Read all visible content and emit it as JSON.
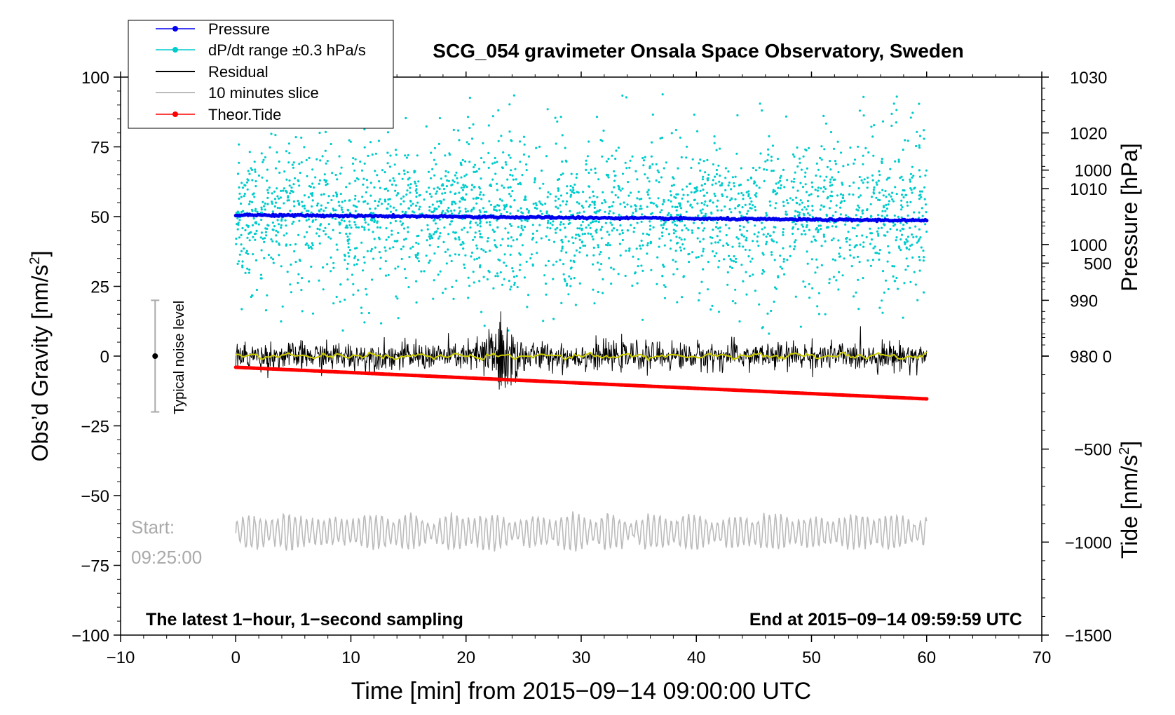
{
  "chart_data": {
    "type": "line",
    "title": "SCG_054 gravimeter Onsala Space Observatory, Sweden",
    "xlabel": "Time [min] from 2015−09−14 09:00:00 UTC",
    "ylabel_left": "Obs’d Gravity [nm/s²]",
    "ylabel_left_main": "Obs’d Gravity [nm/s",
    "ylabel_left_sup": "2",
    "ylabel_left_end": "]",
    "ylabel_right_pressure": "Pressure [hPa]",
    "ylabel_right_tide": "Tide [nm/s²]",
    "ylabel_right_tide_main": "Tide [nm/s",
    "ylabel_right_tide_sup": "2",
    "ylabel_right_tide_end": "]",
    "xlim": [
      -10,
      70
    ],
    "ylim": [
      -100,
      100
    ],
    "pressure_lim": [
      930,
      1030
    ],
    "tide_lim": [
      -1500,
      1500
    ],
    "x_ticks": [
      "−10",
      "0",
      "10",
      "20",
      "30",
      "40",
      "50",
      "60",
      "70"
    ],
    "x_tick_values": [
      -10,
      0,
      10,
      20,
      30,
      40,
      50,
      60,
      70
    ],
    "y_ticks": [
      "100",
      "75",
      "50",
      "25",
      "0",
      "−25",
      "−50",
      "−75",
      "−100"
    ],
    "y_tick_values": [
      100,
      75,
      50,
      25,
      0,
      -25,
      -50,
      -75,
      -100
    ],
    "pressure_ticks": [
      "1030",
      "1020",
      "1010",
      "1000",
      "990",
      "980"
    ],
    "pressure_tick_values": [
      1030,
      1020,
      1010,
      1000,
      990,
      980
    ],
    "tide_ticks": [
      "1000",
      "500",
      "0",
      "−500",
      "−1000",
      "−1500"
    ],
    "tide_tick_values": [
      1000,
      500,
      0,
      -500,
      -1000,
      -1500
    ],
    "legend": {
      "position": "top-left",
      "entries": [
        {
          "label": "Pressure",
          "color": "#0000ee",
          "marker": "dot"
        },
        {
          "label": "dP/dt range ±0.3 hPa/s",
          "color": "#00cccc",
          "marker": "dot"
        },
        {
          "label": "Residual",
          "color": "#000000",
          "marker": "line"
        },
        {
          "label": "10 minutes slice",
          "color": "#bbbbbb",
          "marker": "line"
        },
        {
          "label": "Theor.Tide",
          "color": "#ff0000",
          "marker": "dot"
        }
      ]
    },
    "series": [
      {
        "name": "Pressure",
        "axis": "pressure",
        "x": [
          0,
          60
        ],
        "values": [
          1005.3,
          1004.3
        ],
        "color": "#0000ee"
      },
      {
        "name": "Theor.Tide",
        "axis": "tide",
        "x": [
          0,
          60
        ],
        "values": [
          -60,
          -230
        ],
        "color": "#ff0000"
      },
      {
        "name": "dP/dt range ±0.3 hPa/s",
        "axis": "gravity",
        "center": 50,
        "spread": 13,
        "color": "#00cccc"
      },
      {
        "name": "Residual",
        "axis": "gravity",
        "center": 0,
        "spread": 2.5,
        "event_x": 23,
        "event_peak": 15,
        "color": "#000000"
      },
      {
        "name": "10 minutes slice",
        "axis": "gravity",
        "center": -63,
        "amplitude": 6,
        "color": "#bbbbbb"
      }
    ],
    "smoothed_color": "#cccc00",
    "noise_level": {
      "label": "Typical noise level",
      "x": -7,
      "center": 0,
      "low": -20,
      "high": 20
    },
    "annotations": {
      "start_line1": "Start:",
      "start_line2": "09:25:00",
      "bottom_left": "The latest 1−hour, 1−second sampling",
      "bottom_right": "End at 2015−09−14 09:59:59 UTC"
    }
  }
}
